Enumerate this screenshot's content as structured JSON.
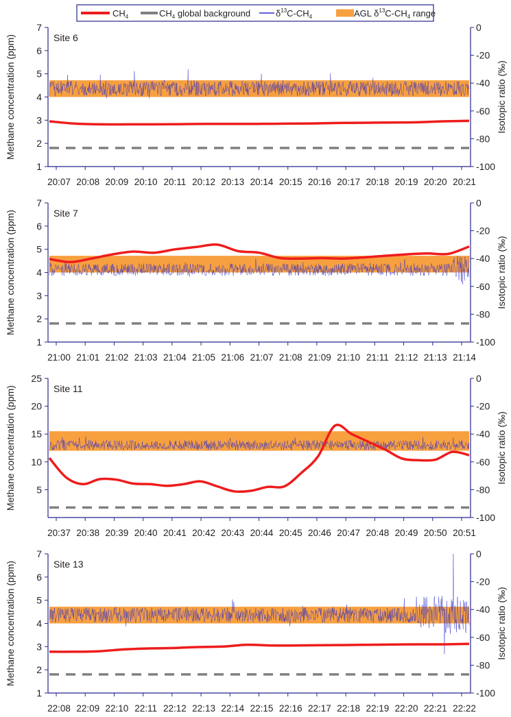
{
  "legend": {
    "items": [
      {
        "label": "CH",
        "sub": "4",
        "after": ""
      },
      {
        "label": "CH",
        "sub": "4",
        "after": " global background"
      },
      {
        "label": "δ",
        "sup": "13",
        "after": "C-CH",
        "sub2": "4"
      },
      {
        "label": "AGL δ",
        "sup": "13",
        "after": "C-CH",
        "sub2": "4",
        "tail": " range"
      }
    ]
  },
  "colors": {
    "ch4": "#ee1c1c",
    "background": "#808080",
    "isotope": "#2a2acc",
    "agl_range": "#f7a040",
    "axis_right": "#26268c"
  },
  "chart_data": [
    {
      "type": "line",
      "site": "Site 6",
      "ylabel": "Methane concentration (ppm)",
      "y2label": "Isotopic ratio (‰)",
      "ylim": [
        1,
        7
      ],
      "yticks": [
        1,
        2,
        3,
        4,
        5,
        6,
        7
      ],
      "y2lim": [
        -100,
        0
      ],
      "y2ticks": [
        -100,
        -80,
        -60,
        -40,
        -20,
        0
      ],
      "xtick_labels": [
        "20:07",
        "20:08",
        "20:09",
        "20:10",
        "20:11",
        "20:12",
        "20:13",
        "20:14",
        "20:15",
        "20:16",
        "20:17",
        "20:18",
        "20:19",
        "20:20",
        "20:21"
      ],
      "ch4_background_ppm": 1.8,
      "agl_range": [
        -50,
        -38
      ],
      "ch4": [
        2.95,
        2.85,
        2.82,
        2.82,
        2.82,
        2.83,
        2.84,
        2.84,
        2.84,
        2.85,
        2.86,
        2.88,
        2.89,
        2.9,
        2.91,
        2.95,
        2.97
      ],
      "isotope": {
        "mean": -44,
        "spread": 3,
        "max": -30,
        "min": -52
      }
    },
    {
      "type": "line",
      "site": "Site 7",
      "ylabel": "Methane concentration (ppm)",
      "y2label": "Isotopic ratio (‰)",
      "ylim": [
        1,
        7
      ],
      "yticks": [
        1,
        2,
        3,
        4,
        5,
        6,
        7
      ],
      "y2lim": [
        -100,
        0
      ],
      "y2ticks": [
        -100,
        -80,
        -60,
        -40,
        -20,
        0
      ],
      "xtick_labels": [
        "21:00",
        "21:01",
        "21:02",
        "21:03",
        "21:04",
        "21:05",
        "21:06",
        "21:07",
        "21:08",
        "21:09",
        "21:10",
        "21:11",
        "21:12",
        "21:13",
        "21:14"
      ],
      "ch4_background_ppm": 1.8,
      "agl_range": [
        -50,
        -38
      ],
      "ch4": [
        4.58,
        4.45,
        4.6,
        4.78,
        4.9,
        4.85,
        5.0,
        5.1,
        5.2,
        4.92,
        4.85,
        4.62,
        4.6,
        4.62,
        4.6,
        4.65,
        4.72,
        4.78,
        4.82,
        4.8,
        5.12
      ],
      "isotope": {
        "mean": -48,
        "spread": 2.5,
        "max": -38,
        "min": -62
      }
    },
    {
      "type": "line",
      "site": "Site 11",
      "ylabel": "Methane concentration (ppm)",
      "y2label": "Isotopic ratio (‰)",
      "ylim": [
        0,
        25
      ],
      "yticks": [
        5,
        10,
        15,
        20,
        25
      ],
      "y2lim": [
        -100,
        0
      ],
      "y2ticks": [
        -100,
        -80,
        -60,
        -40,
        -20,
        0
      ],
      "xtick_labels": [
        "20:37",
        "20:38",
        "20:39",
        "20:40",
        "20:41",
        "20:42",
        "20:43",
        "20:44",
        "20:45",
        "20:46",
        "20:47",
        "20:48",
        "20:49",
        "20:50",
        "20:51"
      ],
      "ch4_background_ppm": 1.8,
      "agl_range": [
        -52,
        -38
      ],
      "ch4": [
        10.7,
        7.2,
        6.0,
        6.9,
        6.8,
        6.1,
        6.0,
        5.7,
        6.0,
        6.5,
        5.6,
        4.7,
        4.8,
        5.5,
        5.6,
        8.0,
        11.0,
        16.5,
        15.0,
        13.6,
        12.2,
        10.6,
        10.3,
        10.4,
        11.8,
        11.2
      ],
      "isotope": {
        "mean": -48,
        "spread": 2,
        "max": -42,
        "min": -56
      }
    },
    {
      "type": "line",
      "site": "Site 13",
      "ylabel": "Methane concentration (ppm)",
      "y2label": "Isotopic ratio (‰)",
      "ylim": [
        1,
        7
      ],
      "yticks": [
        1,
        2,
        3,
        4,
        5,
        6,
        7
      ],
      "y2lim": [
        -100,
        0
      ],
      "y2ticks": [
        -100,
        -80,
        -60,
        -40,
        -20,
        0
      ],
      "xtick_labels": [
        "22:08",
        "22:09",
        "22:10",
        "22:11",
        "22:12",
        "22:13",
        "22:14",
        "22:15",
        "22:16",
        "22:17",
        "22:18",
        "22:19",
        "22:20",
        "22:21",
        "22:22"
      ],
      "ch4_background_ppm": 1.8,
      "agl_range": [
        -50,
        -38
      ],
      "ch4": [
        2.78,
        2.78,
        2.8,
        2.88,
        2.92,
        2.94,
        2.98,
        3.0,
        3.08,
        3.05,
        3.05,
        3.06,
        3.07,
        3.08,
        3.09,
        3.1,
        3.1,
        3.12
      ],
      "isotope": {
        "mean": -44,
        "spread": 3,
        "max": 0,
        "min": -72
      }
    }
  ]
}
